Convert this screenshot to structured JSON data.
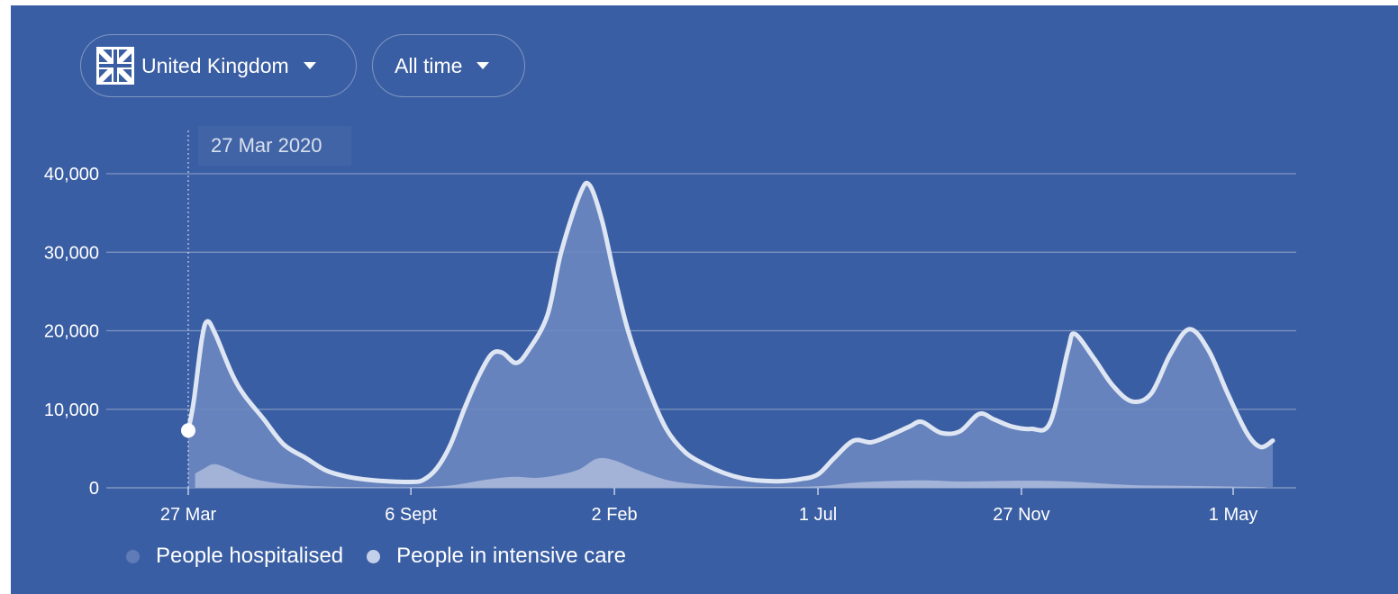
{
  "filters": {
    "country_label": "United Kingdom",
    "country_flag_icon": "union-jack-flag-icon",
    "range_label": "All time"
  },
  "tooltip": {
    "date": "27 Mar 2020"
  },
  "colors": {
    "background": "#3a5ea3",
    "hospitalised_fill": "#6b87c0",
    "intensive_fill": "#aebbdc",
    "line": "#dfe6f3",
    "legend_hospitalised": "#5f7cb8",
    "legend_intensive": "#c4d0ea"
  },
  "legend": [
    {
      "label": "People hospitalised"
    },
    {
      "label": "People in intensive care"
    }
  ],
  "chart_data": {
    "type": "area",
    "title": "",
    "xlabel": "",
    "ylabel": "",
    "x_domain": [
      "2020-03-27",
      "2022-05-30"
    ],
    "ylim": [
      0,
      40000
    ],
    "y_ticks": [
      {
        "value": 0,
        "label": "0"
      },
      {
        "value": 10000,
        "label": "10,000"
      },
      {
        "value": 20000,
        "label": "20,000"
      },
      {
        "value": 30000,
        "label": "30,000"
      },
      {
        "value": 40000,
        "label": "40,000"
      }
    ],
    "x_ticks": [
      {
        "date": "2020-03-27",
        "label": "27 Mar"
      },
      {
        "date": "2020-09-06",
        "label": "6 Sept"
      },
      {
        "date": "2021-02-02",
        "label": "2 Feb"
      },
      {
        "date": "2021-07-01",
        "label": "1 Jul"
      },
      {
        "date": "2021-11-27",
        "label": "27 Nov"
      },
      {
        "date": "2022-05-01",
        "label": "1 May"
      }
    ],
    "grid": true,
    "legend_position": "bottom-left",
    "highlight": {
      "date": "2020-03-27",
      "value": 7300
    },
    "series": [
      {
        "name": "People hospitalised",
        "points": [
          [
            "2020-03-27",
            7300
          ],
          [
            "2020-03-31",
            11000
          ],
          [
            "2020-04-06",
            19000
          ],
          [
            "2020-04-10",
            21200
          ],
          [
            "2020-04-16",
            19500
          ],
          [
            "2020-04-28",
            14500
          ],
          [
            "2020-05-07",
            11800
          ],
          [
            "2020-05-21",
            8800
          ],
          [
            "2020-06-05",
            5500
          ],
          [
            "2020-06-21",
            3800
          ],
          [
            "2020-07-06",
            2200
          ],
          [
            "2020-07-22",
            1400
          ],
          [
            "2020-08-07",
            1000
          ],
          [
            "2020-08-23",
            800
          ],
          [
            "2020-09-06",
            750
          ],
          [
            "2020-09-15",
            1000
          ],
          [
            "2020-09-25",
            2500
          ],
          [
            "2020-10-05",
            5500
          ],
          [
            "2020-10-15",
            10000
          ],
          [
            "2020-10-25",
            14000
          ],
          [
            "2020-11-04",
            17000
          ],
          [
            "2020-11-12",
            17200
          ],
          [
            "2020-11-22",
            15900
          ],
          [
            "2020-12-01",
            17500
          ],
          [
            "2020-12-15",
            22000
          ],
          [
            "2020-12-25",
            30000
          ],
          [
            "2021-01-08",
            37500
          ],
          [
            "2021-01-15",
            38500
          ],
          [
            "2021-01-24",
            34000
          ],
          [
            "2021-02-02",
            27000
          ],
          [
            "2021-02-12",
            20000
          ],
          [
            "2021-02-26",
            13000
          ],
          [
            "2021-03-12",
            7500
          ],
          [
            "2021-03-26",
            4500
          ],
          [
            "2021-04-09",
            3000
          ],
          [
            "2021-04-23",
            1900
          ],
          [
            "2021-05-07",
            1200
          ],
          [
            "2021-05-21",
            900
          ],
          [
            "2021-06-04",
            850
          ],
          [
            "2021-06-18",
            1100
          ],
          [
            "2021-07-01",
            1700
          ],
          [
            "2021-07-13",
            3800
          ],
          [
            "2021-07-27",
            6000
          ],
          [
            "2021-08-09",
            5800
          ],
          [
            "2021-08-23",
            6700
          ],
          [
            "2021-09-06",
            7800
          ],
          [
            "2021-09-15",
            8400
          ],
          [
            "2021-09-29",
            7000
          ],
          [
            "2021-10-13",
            7200
          ],
          [
            "2021-10-27",
            9400
          ],
          [
            "2021-11-07",
            8700
          ],
          [
            "2021-11-20",
            7800
          ],
          [
            "2021-12-04",
            7500
          ],
          [
            "2021-12-18",
            8300
          ],
          [
            "2021-12-31",
            17500
          ],
          [
            "2022-01-05",
            19600
          ],
          [
            "2022-01-19",
            16500
          ],
          [
            "2022-02-02",
            13000
          ],
          [
            "2022-02-16",
            11000
          ],
          [
            "2022-03-02",
            12000
          ],
          [
            "2022-03-16",
            17000
          ],
          [
            "2022-03-30",
            20200
          ],
          [
            "2022-04-13",
            17500
          ],
          [
            "2022-04-27",
            12000
          ],
          [
            "2022-05-11",
            7000
          ],
          [
            "2022-05-21",
            5200
          ],
          [
            "2022-05-30",
            6000
          ]
        ]
      },
      {
        "name": "People in intensive care",
        "points": [
          [
            "2020-04-01",
            1800
          ],
          [
            "2020-04-07",
            2400
          ],
          [
            "2020-04-14",
            3000
          ],
          [
            "2020-04-22",
            2700
          ],
          [
            "2020-05-06",
            1600
          ],
          [
            "2020-05-20",
            900
          ],
          [
            "2020-06-10",
            400
          ],
          [
            "2020-07-10",
            150
          ],
          [
            "2020-08-15",
            80
          ],
          [
            "2020-09-06",
            80
          ],
          [
            "2020-10-05",
            300
          ],
          [
            "2020-10-30",
            1000
          ],
          [
            "2020-11-20",
            1400
          ],
          [
            "2020-12-10",
            1300
          ],
          [
            "2021-01-05",
            2200
          ],
          [
            "2021-01-20",
            3700
          ],
          [
            "2021-02-02",
            3500
          ],
          [
            "2021-02-20",
            2200
          ],
          [
            "2021-03-15",
            900
          ],
          [
            "2021-04-15",
            300
          ],
          [
            "2021-05-20",
            120
          ],
          [
            "2021-07-01",
            200
          ],
          [
            "2021-08-01",
            700
          ],
          [
            "2021-09-15",
            950
          ],
          [
            "2021-10-15",
            800
          ],
          [
            "2021-11-27",
            900
          ],
          [
            "2021-12-31",
            800
          ],
          [
            "2022-02-15",
            350
          ],
          [
            "2022-04-01",
            250
          ],
          [
            "2022-05-15",
            120
          ],
          [
            "2022-05-25",
            60
          ]
        ]
      }
    ]
  }
}
